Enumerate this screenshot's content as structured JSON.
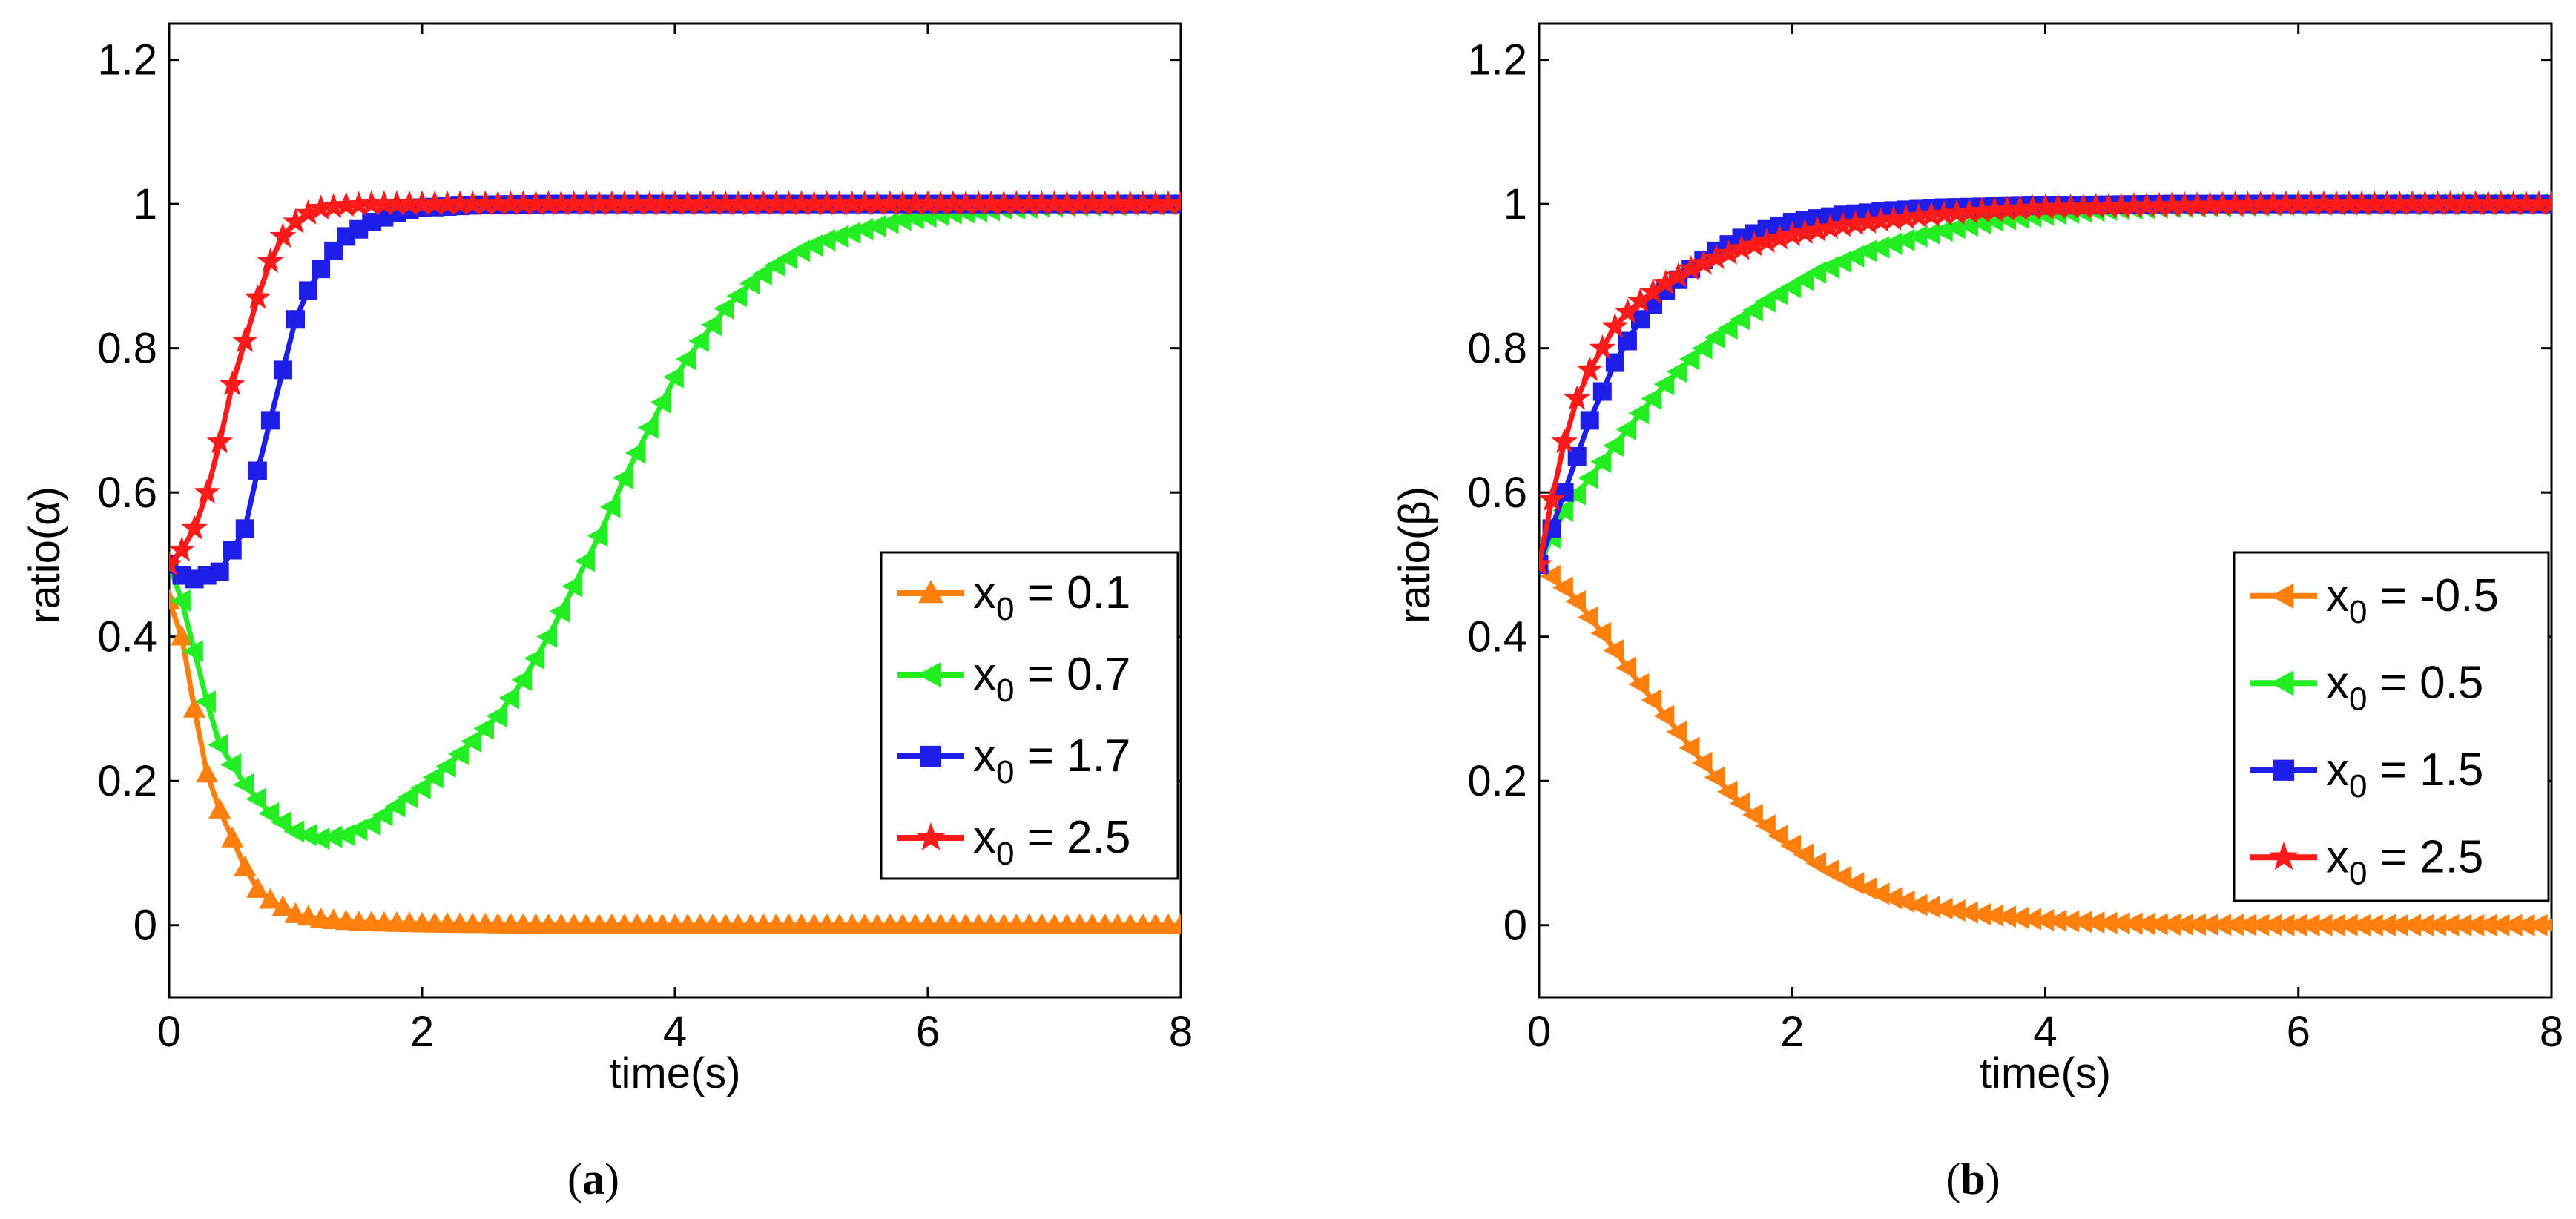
{
  "chart_data": [
    {
      "id": "a",
      "type": "line",
      "caption_letter": "a",
      "caption_prefix": "(",
      "caption_suffix": ")",
      "xlabel": "time(s)",
      "ylabel": "ratio(α)",
      "xlim": [
        0,
        8
      ],
      "ylim": [
        -0.1,
        1.25
      ],
      "xticks": [
        "0",
        "2",
        "4",
        "6",
        "8"
      ],
      "yticks": [
        "0",
        "0.2",
        "0.4",
        "0.6",
        "0.8",
        "1",
        "1.2"
      ],
      "legend_position": "lower-right",
      "legend_prefix": "x",
      "legend_sub": "0",
      "series": [
        {
          "name": "x0 = 0.1",
          "value_text": " = 0.1",
          "color": "#FF7F0E",
          "marker": "triangle-up",
          "x": [
            0,
            0.1,
            0.2,
            0.3,
            0.4,
            0.5,
            0.6,
            0.7,
            0.8,
            1.0,
            1.2,
            1.5,
            2,
            3,
            4,
            5,
            6,
            7,
            8
          ],
          "y": [
            0.45,
            0.4,
            0.3,
            0.21,
            0.16,
            0.12,
            0.08,
            0.05,
            0.035,
            0.015,
            0.008,
            0.004,
            0.002,
            0,
            0,
            0,
            0,
            0,
            0
          ]
        },
        {
          "name": "x0 = 0.7",
          "value_text": " = 0.7",
          "color": "#22EE22",
          "marker": "triangle-left",
          "x": [
            0,
            0.1,
            0.2,
            0.3,
            0.4,
            0.6,
            0.8,
            1.0,
            1.2,
            1.4,
            1.6,
            1.8,
            2.0,
            2.2,
            2.4,
            2.6,
            2.8,
            3.0,
            3.2,
            3.4,
            3.6,
            3.8,
            4.0,
            4.2,
            4.4,
            4.6,
            4.8,
            5.0,
            5.2,
            5.5,
            5.8,
            6.2,
            6.6,
            7.0,
            7.5,
            8.0
          ],
          "y": [
            0.5,
            0.45,
            0.38,
            0.31,
            0.25,
            0.195,
            0.155,
            0.13,
            0.12,
            0.125,
            0.14,
            0.165,
            0.19,
            0.22,
            0.255,
            0.29,
            0.34,
            0.4,
            0.47,
            0.54,
            0.62,
            0.69,
            0.76,
            0.81,
            0.855,
            0.89,
            0.915,
            0.935,
            0.95,
            0.965,
            0.978,
            0.987,
            0.993,
            0.997,
            0.999,
            1.0
          ]
        },
        {
          "name": "x0 = 1.7",
          "value_text": " = 1.7",
          "color": "#1E1EE8",
          "marker": "square",
          "x": [
            0,
            0.1,
            0.2,
            0.4,
            0.6,
            0.7,
            0.8,
            0.9,
            1.0,
            1.1,
            1.2,
            1.3,
            1.4,
            1.6,
            1.8,
            2.0,
            2.5,
            3,
            4,
            5,
            6,
            7,
            8
          ],
          "y": [
            0.5,
            0.485,
            0.48,
            0.49,
            0.55,
            0.63,
            0.7,
            0.77,
            0.84,
            0.88,
            0.91,
            0.935,
            0.955,
            0.975,
            0.988,
            0.995,
            0.999,
            1.0,
            1.0,
            1.0,
            1.0,
            1.0,
            1.0
          ]
        },
        {
          "name": "x0 = 2.5",
          "value_text": " = 2.5",
          "color": "#FF1A1A",
          "marker": "star",
          "x": [
            0,
            0.1,
            0.2,
            0.3,
            0.4,
            0.5,
            0.6,
            0.7,
            0.8,
            0.9,
            1.0,
            1.1,
            1.2,
            1.4,
            1.6,
            2.0,
            3,
            4,
            5,
            6,
            7,
            8
          ],
          "y": [
            0.5,
            0.52,
            0.55,
            0.6,
            0.67,
            0.75,
            0.81,
            0.87,
            0.92,
            0.955,
            0.975,
            0.987,
            0.994,
            0.998,
            1.0,
            1.0,
            1.0,
            1.0,
            1.0,
            1.0,
            1.0,
            1.0
          ]
        }
      ]
    },
    {
      "id": "b",
      "type": "line",
      "caption_letter": "b",
      "caption_prefix": "(",
      "caption_suffix": ")",
      "xlabel": "time(s)",
      "ylabel": "ratio(β)",
      "xlim": [
        0,
        8
      ],
      "ylim": [
        -0.1,
        1.25
      ],
      "xticks": [
        "0",
        "2",
        "4",
        "6",
        "8"
      ],
      "yticks": [
        "0",
        "0.2",
        "0.4",
        "0.6",
        "0.8",
        "1",
        "1.2"
      ],
      "legend_position": "lower-right",
      "legend_prefix": "x",
      "legend_sub": "0",
      "series": [
        {
          "name": "x0 = -0.5",
          "value_text": " = -0.5",
          "color": "#FF7F0E",
          "marker": "triangle-left",
          "x": [
            0,
            0.25,
            0.5,
            0.75,
            1.0,
            1.25,
            1.5,
            1.75,
            2.0,
            2.25,
            2.5,
            2.75,
            3.0,
            3.5,
            4.0,
            4.5,
            5,
            6,
            7,
            8
          ],
          "y": [
            0.5,
            0.46,
            0.405,
            0.345,
            0.29,
            0.235,
            0.185,
            0.145,
            0.11,
            0.08,
            0.058,
            0.04,
            0.028,
            0.015,
            0.007,
            0.003,
            0.001,
            0,
            0,
            0
          ]
        },
        {
          "name": "x0 = 0.5",
          "value_text": " = 0.5",
          "color": "#22EE22",
          "marker": "triangle-left",
          "x": [
            0,
            0.2,
            0.4,
            0.6,
            0.8,
            1.0,
            1.2,
            1.4,
            1.6,
            1.8,
            2.0,
            2.2,
            2.4,
            2.6,
            2.8,
            3.0,
            3.3,
            3.6,
            4.0,
            4.5,
            5.0,
            6.0,
            7.0,
            8.0
          ],
          "y": [
            0.5,
            0.575,
            0.62,
            0.665,
            0.71,
            0.75,
            0.785,
            0.815,
            0.84,
            0.865,
            0.885,
            0.905,
            0.92,
            0.935,
            0.945,
            0.955,
            0.967,
            0.977,
            0.985,
            0.992,
            0.996,
            0.999,
            1.0,
            1.0
          ]
        },
        {
          "name": "x0 = 1.5",
          "value_text": " = 1.5",
          "color": "#1E1EE8",
          "marker": "square",
          "x": [
            0,
            0.2,
            0.4,
            0.6,
            0.8,
            1.0,
            1.2,
            1.4,
            1.6,
            1.8,
            2.0,
            2.4,
            2.8,
            3.2,
            4,
            5,
            6,
            7,
            8
          ],
          "y": [
            0.5,
            0.6,
            0.7,
            0.78,
            0.84,
            0.88,
            0.91,
            0.935,
            0.953,
            0.965,
            0.975,
            0.985,
            0.991,
            0.995,
            0.998,
            1.0,
            1.0,
            1.0,
            1.0
          ]
        },
        {
          "name": "x0 = 2.5",
          "value_text": " = 2.5",
          "color": "#FF1A1A",
          "marker": "star",
          "x": [
            0,
            0.1,
            0.2,
            0.3,
            0.4,
            0.5,
            0.6,
            0.7,
            0.8,
            1.0,
            1.2,
            1.4,
            1.6,
            1.8,
            2.0,
            2.4,
            2.8,
            3.2,
            3.6,
            4.0,
            5,
            6,
            7,
            8
          ],
          "y": [
            0.5,
            0.59,
            0.67,
            0.73,
            0.77,
            0.8,
            0.83,
            0.85,
            0.865,
            0.89,
            0.91,
            0.925,
            0.938,
            0.948,
            0.957,
            0.97,
            0.979,
            0.986,
            0.991,
            0.995,
            0.998,
            1.0,
            1.0,
            1.0
          ]
        }
      ]
    }
  ]
}
